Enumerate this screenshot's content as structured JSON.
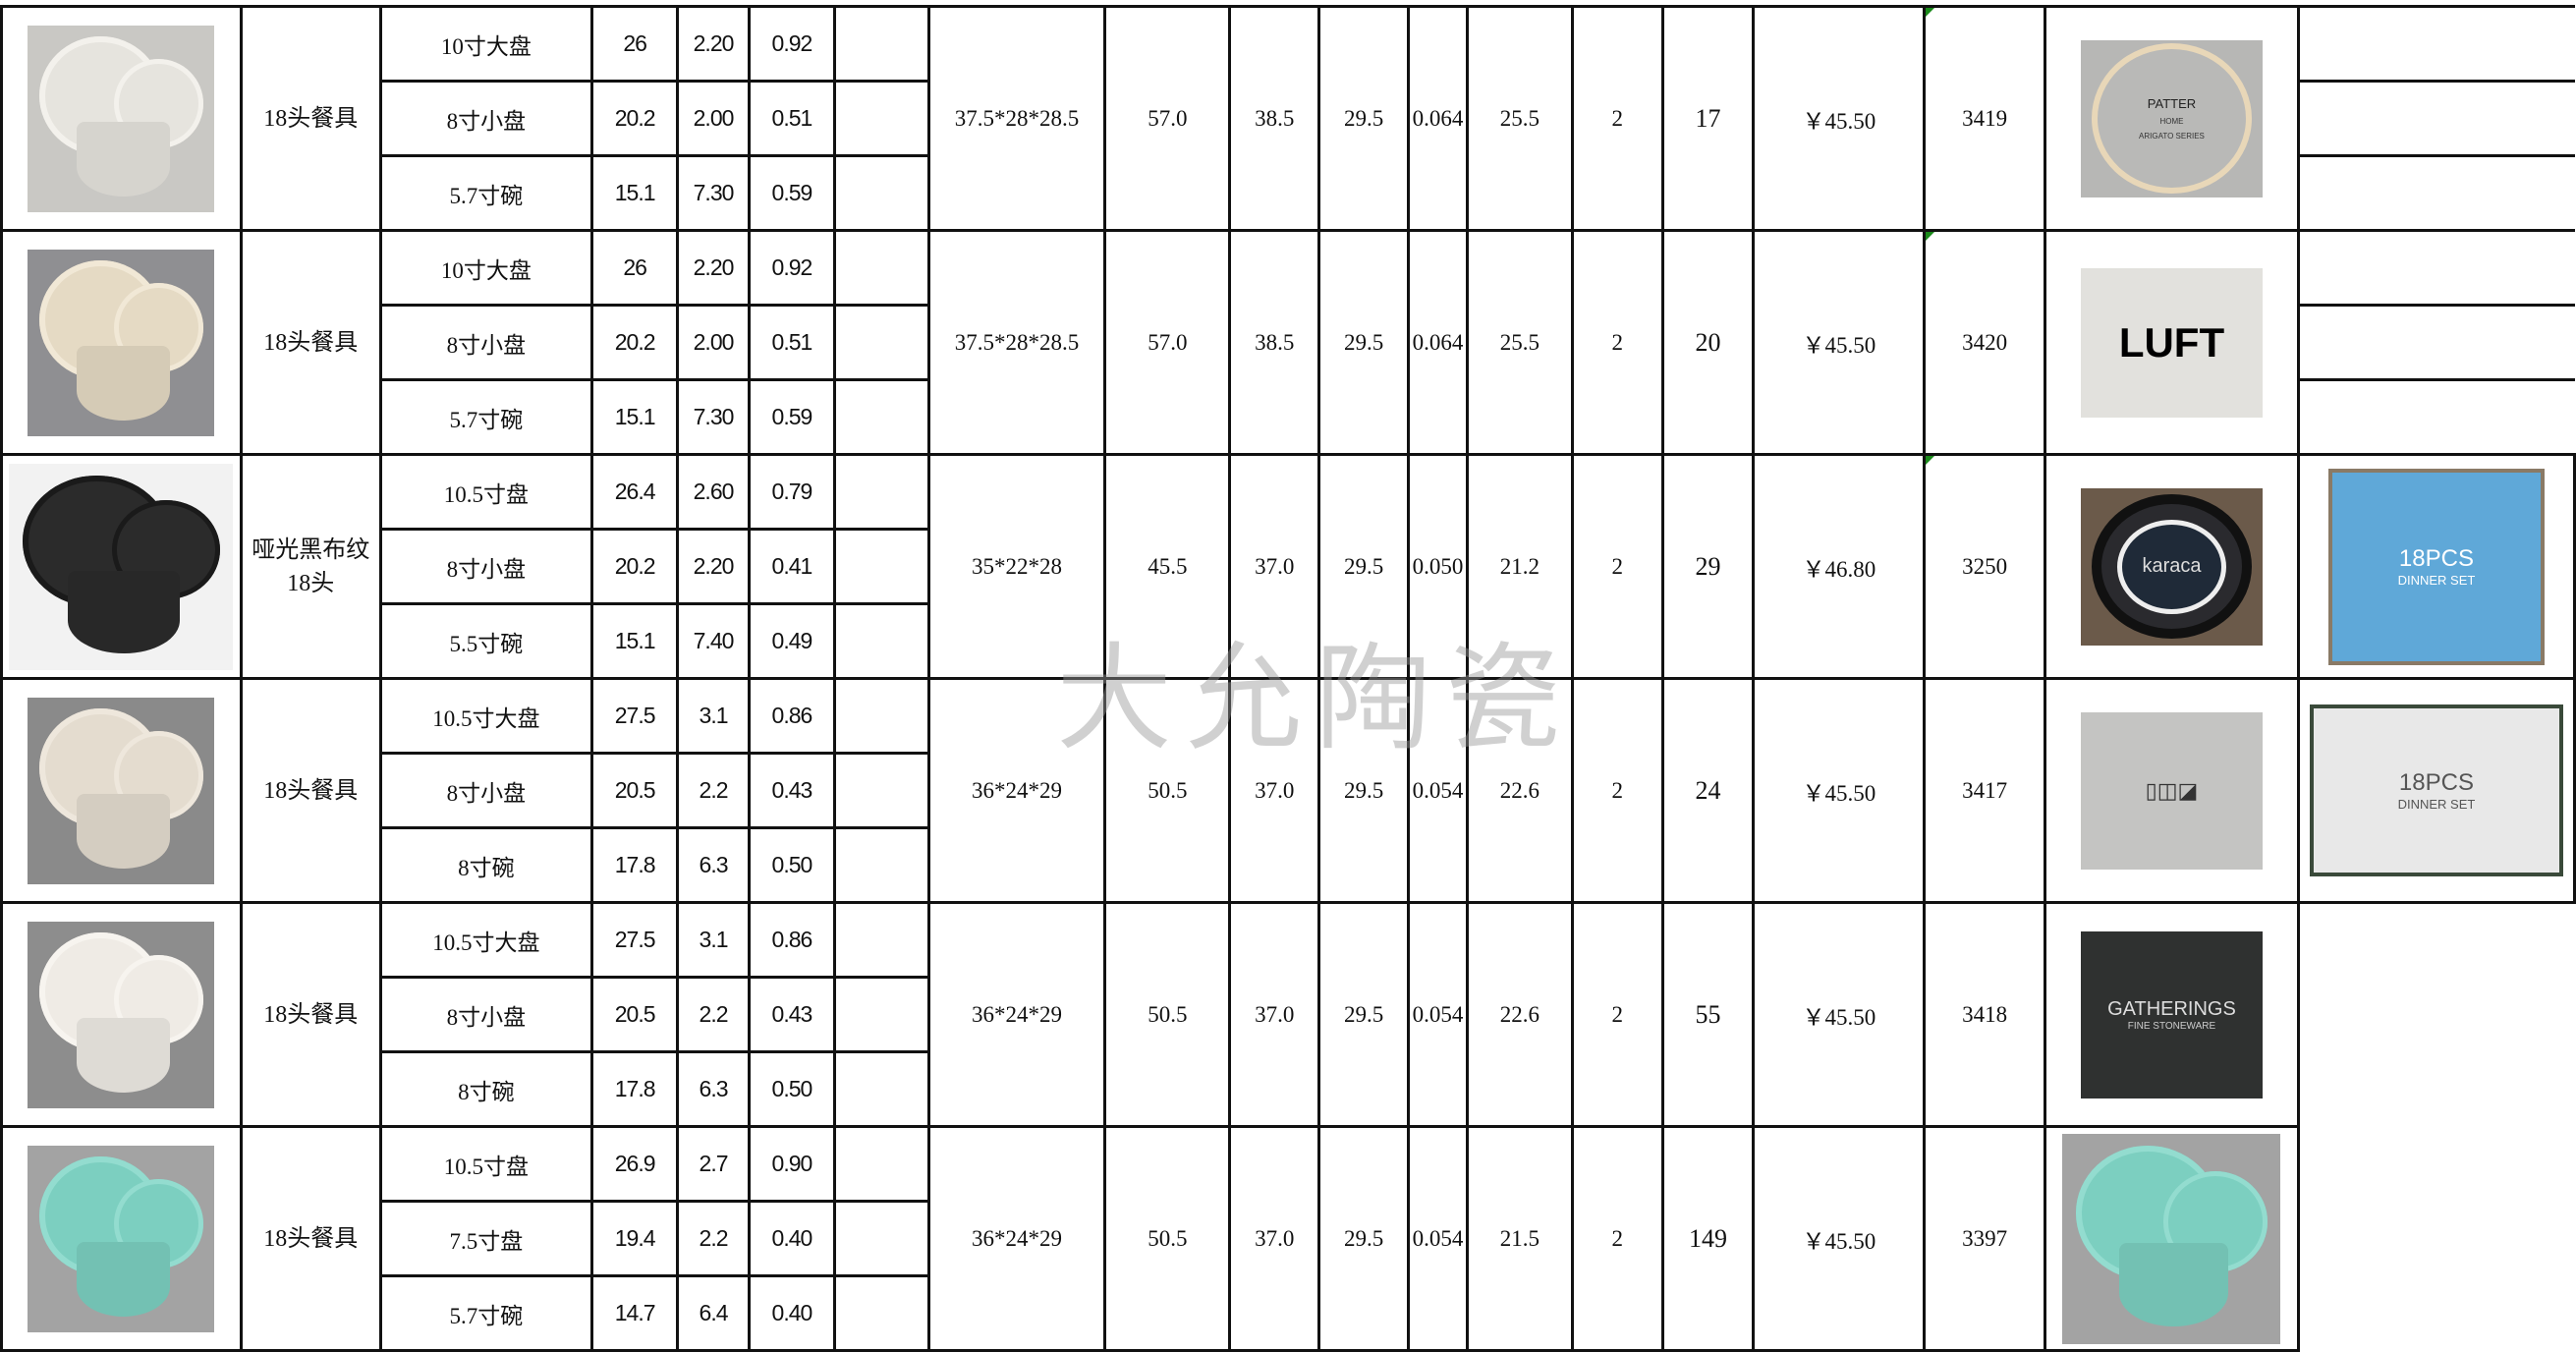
{
  "watermark": "大允陶瓷",
  "groups": [
    {
      "name": "18头餐具",
      "items": [
        {
          "label": "10寸大盘",
          "a": "26",
          "b": "2.20",
          "c": "0.92"
        },
        {
          "label": "8寸小盘",
          "a": "20.2",
          "b": "2.00",
          "c": "0.51"
        },
        {
          "label": "5.7寸碗",
          "a": "15.1",
          "b": "7.30",
          "c": "0.59"
        }
      ],
      "carton": "37.5*28*28.5",
      "gw": "57.0",
      "nw": "38.5",
      "c3": "29.5",
      "cbm": "0.064",
      "c5": "25.5",
      "c6": "2",
      "qty": "17",
      "price": "￥45.50",
      "code": "3419",
      "photo": {
        "bg": "#c9c8c4",
        "plate": "#e6e4de",
        "rim": "#f3f1ec"
      },
      "logo": {
        "type": "ring",
        "bg": "#b7b7b5",
        "texts": [
          "PATTER",
          "HOME",
          "ARIGATO SERIES"
        ]
      },
      "pack": null,
      "last": "split"
    },
    {
      "name": "18头餐具",
      "items": [
        {
          "label": "10寸大盘",
          "a": "26",
          "b": "2.20",
          "c": "0.92"
        },
        {
          "label": "8寸小盘",
          "a": "20.2",
          "b": "2.00",
          "c": "0.51"
        },
        {
          "label": "5.7寸碗",
          "a": "15.1",
          "b": "7.30",
          "c": "0.59"
        }
      ],
      "carton": "37.5*28*28.5",
      "gw": "57.0",
      "nw": "38.5",
      "c3": "29.5",
      "cbm": "0.064",
      "c5": "25.5",
      "c6": "2",
      "qty": "20",
      "price": "￥45.50",
      "code": "3420",
      "photo": {
        "bg": "#8f8f92",
        "plate": "#e5dac4",
        "rim": "#f1e8d6"
      },
      "logo": {
        "type": "text",
        "bg": "#e2e1dd",
        "texts": [
          "LUFT"
        ]
      },
      "pack": null,
      "last": "split"
    },
    {
      "name": "哑光黑布纹18头",
      "items": [
        {
          "label": "10.5寸盘",
          "a": "26.4",
          "b": "2.60",
          "c": "0.79"
        },
        {
          "label": "8寸小盘",
          "a": "20.2",
          "b": "2.20",
          "c": "0.41"
        },
        {
          "label": "5.5寸碗",
          "a": "15.1",
          "b": "7.40",
          "c": "0.49"
        }
      ],
      "carton": "35*22*28",
      "gw": "45.5",
      "nw": "37.0",
      "c3": "29.5",
      "cbm": "0.050",
      "c5": "21.2",
      "c6": "2",
      "qty": "29",
      "price": "￥46.80",
      "code": "3250",
      "photo": {
        "bg": "#f2f2f2",
        "plate": "#2b2b2b",
        "rim": "#1a1a1a"
      },
      "logo": {
        "type": "dark",
        "bg": "#6b5a4a",
        "texts": [
          "karaca"
        ]
      },
      "pack": {
        "bg": "#5fa8d8",
        "texts": [
          "18PCS",
          "DINNER SET"
        ]
      },
      "last": "pack"
    },
    {
      "name": "18头餐具",
      "items": [
        {
          "label": "10.5寸大盘",
          "a": "27.5",
          "b": "3.1",
          "c": "0.86"
        },
        {
          "label": "8寸小盘",
          "a": "20.5",
          "b": "2.2",
          "c": "0.43"
        },
        {
          "label": "8寸碗",
          "a": "17.8",
          "b": "6.3",
          "c": "0.50"
        }
      ],
      "carton": "36*24*29",
      "gw": "50.5",
      "nw": "37.0",
      "c3": "29.5",
      "cbm": "0.054",
      "c5": "22.6",
      "c6": "2",
      "qty": "24",
      "price": "￥45.50",
      "code": "3417",
      "photo": {
        "bg": "#8a8a8a",
        "plate": "#e4dccf",
        "rim": "#eee7dc"
      },
      "logo": {
        "type": "text",
        "bg": "#c4c4c2",
        "texts": [
          "▯◫◪"
        ]
      },
      "pack": {
        "bg": "#e8e8e8",
        "texts": [
          "18PCS",
          "DINNER SET"
        ]
      },
      "last": "pack"
    },
    {
      "name": "18头餐具",
      "items": [
        {
          "label": "10.5寸大盘",
          "a": "27.5",
          "b": "3.1",
          "c": "0.86"
        },
        {
          "label": "8寸小盘",
          "a": "20.5",
          "b": "2.2",
          "c": "0.43"
        },
        {
          "label": "8寸碗",
          "a": "17.8",
          "b": "6.3",
          "c": "0.50"
        }
      ],
      "carton": "36*24*29",
      "gw": "50.5",
      "nw": "37.0",
      "c3": "29.5",
      "cbm": "0.054",
      "c5": "22.6",
      "c6": "2",
      "qty": "55",
      "price": "￥45.50",
      "code": "3418",
      "photo": {
        "bg": "#8d8d8d",
        "plate": "#efebe5",
        "rim": "#f7f4ef"
      },
      "logo": {
        "type": "dark",
        "bg": "#2f3130",
        "texts": [
          "GATHERINGS",
          "FINE STONEWARE"
        ]
      },
      "pack": null,
      "last": "blank"
    },
    {
      "name": "18头餐具",
      "items": [
        {
          "label": "10.5寸盘",
          "a": "26.9",
          "b": "2.7",
          "c": "0.90"
        },
        {
          "label": "7.5寸盘",
          "a": "19.4",
          "b": "2.2",
          "c": "0.40"
        },
        {
          "label": "5.7寸碗",
          "a": "14.7",
          "b": "6.4",
          "c": "0.40"
        }
      ],
      "carton": "36*24*29",
      "gw": "50.5",
      "nw": "37.0",
      "c3": "29.5",
      "cbm": "0.054",
      "c5": "21.5",
      "c6": "2",
      "qty": "149",
      "price": "￥45.50",
      "code": "3397",
      "photo": {
        "bg": "#a3a3a3",
        "plate": "#7ccfc0",
        "rim": "#93dccf"
      },
      "logo": {
        "type": "mint",
        "bg": "#a6a6a6",
        "texts": []
      },
      "pack": null,
      "last": "blank"
    }
  ]
}
